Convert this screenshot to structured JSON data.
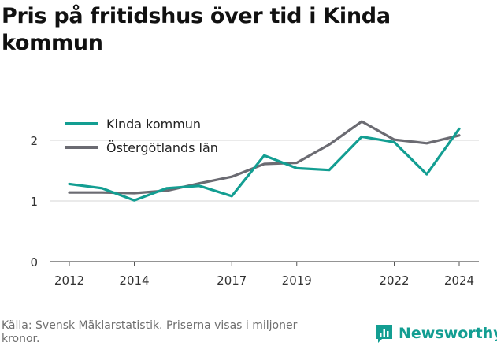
{
  "title": "Pris på fritidshus över tid i Kinda kommun",
  "footer": {
    "source": "Källa: Svensk Mäklarstatistik. Priserna visas i miljoner kronor."
  },
  "brand": {
    "name": "Newsworthy",
    "icon": "newsworthy-logo-icon",
    "color": "#139e92"
  },
  "chart_data": {
    "type": "line",
    "title": "Pris på fritidshus över tid i Kinda kommun",
    "xlabel": "",
    "ylabel": "",
    "x": [
      2012,
      2013,
      2014,
      2015,
      2016,
      2017,
      2018,
      2019,
      2020,
      2021,
      2022,
      2023,
      2024
    ],
    "x_ticks": [
      2012,
      2014,
      2017,
      2019,
      2022,
      2024
    ],
    "y_ticks": [
      0,
      1,
      2
    ],
    "ylim": [
      0,
      2.35
    ],
    "xlim": [
      2012,
      2024
    ],
    "grid": true,
    "legend_position": "top-left",
    "series": [
      {
        "name": "Kinda kommun",
        "color": "#139e92",
        "values": [
          1.28,
          1.21,
          1.01,
          1.21,
          1.25,
          1.08,
          1.75,
          1.54,
          1.51,
          2.06,
          1.97,
          1.44,
          2.19
        ]
      },
      {
        "name": "Östergötlands län",
        "color": "#6b6b72",
        "values": [
          1.14,
          1.14,
          1.13,
          1.17,
          1.29,
          1.4,
          1.61,
          1.63,
          1.93,
          2.31,
          2.01,
          1.95,
          2.08
        ]
      }
    ]
  }
}
